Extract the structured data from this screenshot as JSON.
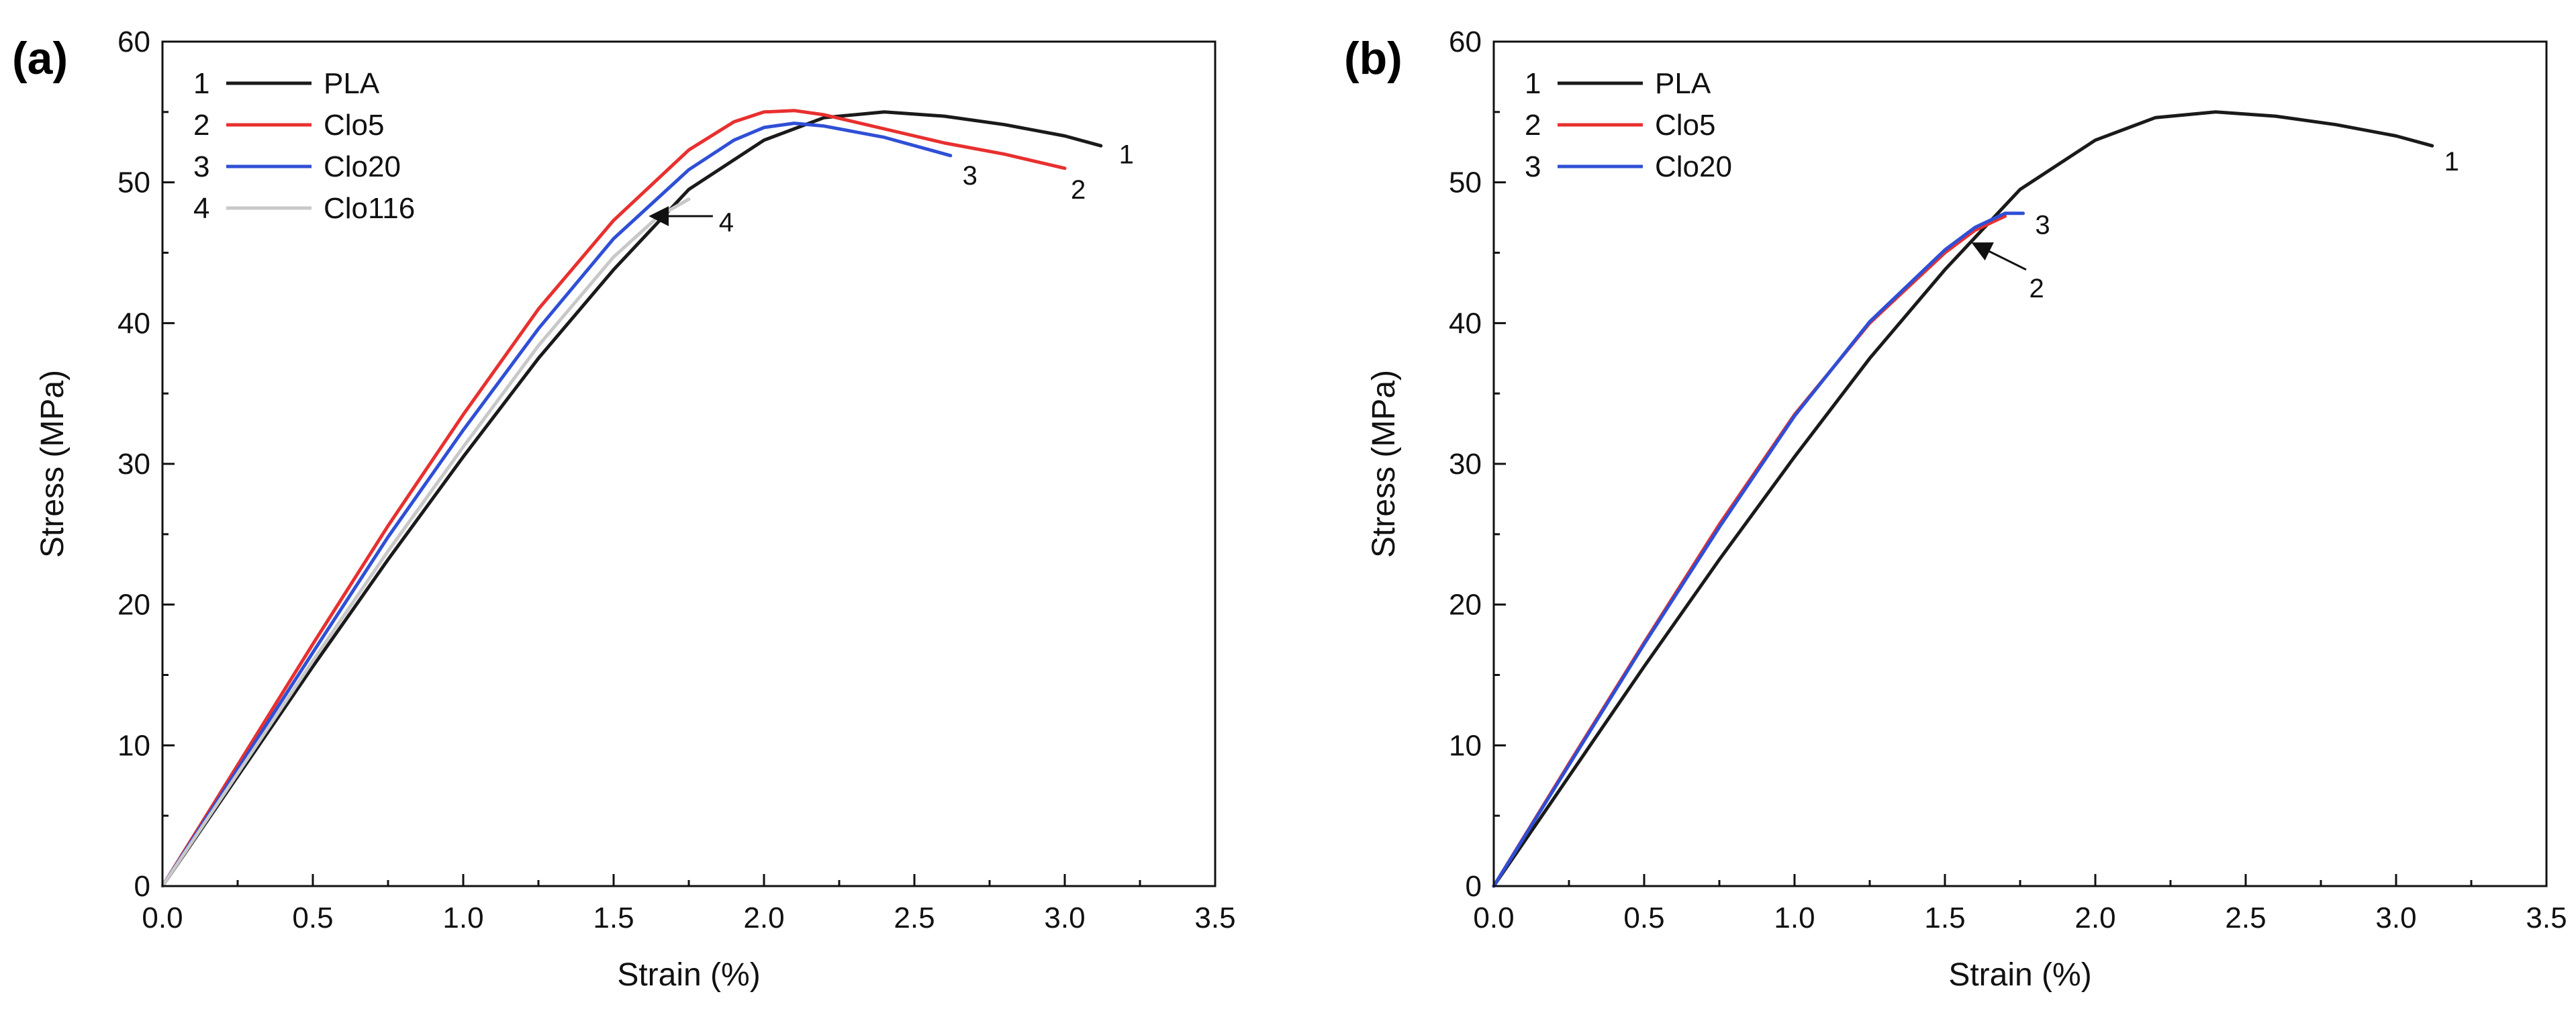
{
  "colors": {
    "PLA": "#1a1a1a",
    "Clo5": "#e8302f",
    "Clo20": "#2f4fd6",
    "Clo116": "#c8c8c8",
    "axis": "#111111"
  },
  "chart_data": [
    {
      "type": "line",
      "panel_label": "(a)",
      "xlabel": "Strain (%)",
      "ylabel": "Stress (MPa)",
      "xlim": [
        0,
        3.5
      ],
      "ylim": [
        0,
        60
      ],
      "xticks": [
        0.0,
        0.5,
        1.0,
        1.5,
        2.0,
        2.5,
        3.0,
        3.5
      ],
      "xtick_labels": [
        "0.0",
        "0.5",
        "1.0",
        "1.5",
        "2.0",
        "2.5",
        "3.0",
        "3.5"
      ],
      "yticks": [
        0,
        10,
        20,
        30,
        40,
        50,
        60
      ],
      "ytick_labels": [
        "0",
        "10",
        "20",
        "30",
        "40",
        "50",
        "60"
      ],
      "legend_position": "top-left",
      "series": [
        {
          "id": "1",
          "name": "PLA",
          "color_key": "PLA",
          "x": [
            0,
            0.25,
            0.5,
            0.75,
            1.0,
            1.25,
            1.5,
            1.75,
            2.0,
            2.2,
            2.4,
            2.6,
            2.8,
            3.0,
            3.12
          ],
          "y": [
            0,
            7.8,
            15.6,
            23.2,
            30.5,
            37.5,
            43.8,
            49.5,
            53.0,
            54.6,
            55.0,
            54.7,
            54.1,
            53.3,
            52.6
          ]
        },
        {
          "id": "2",
          "name": "Clo5",
          "color_key": "Clo5",
          "x": [
            0,
            0.25,
            0.5,
            0.75,
            1.0,
            1.25,
            1.5,
            1.75,
            1.9,
            2.0,
            2.1,
            2.2,
            2.4,
            2.6,
            2.8,
            3.0
          ],
          "y": [
            0,
            8.6,
            17.2,
            25.6,
            33.5,
            41.0,
            47.3,
            52.3,
            54.3,
            55.0,
            55.1,
            54.8,
            53.8,
            52.8,
            52.0,
            51.0
          ]
        },
        {
          "id": "3",
          "name": "Clo20",
          "color_key": "Clo20",
          "x": [
            0,
            0.25,
            0.5,
            0.75,
            1.0,
            1.25,
            1.5,
            1.75,
            1.9,
            2.0,
            2.1,
            2.2,
            2.4,
            2.62
          ],
          "y": [
            0,
            8.3,
            16.6,
            24.8,
            32.4,
            39.6,
            46.0,
            50.9,
            53.0,
            53.9,
            54.2,
            54.0,
            53.2,
            51.9
          ]
        },
        {
          "id": "4",
          "name": "Clo116",
          "color_key": "Clo116",
          "x": [
            0,
            0.25,
            0.5,
            0.75,
            1.0,
            1.25,
            1.5,
            1.65,
            1.75
          ],
          "y": [
            0,
            8.0,
            16.0,
            23.8,
            31.2,
            38.4,
            44.7,
            47.6,
            48.8
          ]
        }
      ],
      "annotations": [
        {
          "text": "1",
          "x": 3.18,
          "y": 52.0
        },
        {
          "text": "2",
          "x": 3.02,
          "y": 49.5
        },
        {
          "text": "3",
          "x": 2.66,
          "y": 50.5
        },
        {
          "text": "4",
          "x": 1.85,
          "y": 47.2,
          "arrow_from": [
            1.83,
            47.6
          ],
          "arrow_to": [
            1.63,
            47.6
          ]
        }
      ]
    },
    {
      "type": "line",
      "panel_label": "(b)",
      "xlabel": "Strain (%)",
      "ylabel": "Stress (MPa)",
      "xlim": [
        0,
        3.5
      ],
      "ylim": [
        0,
        60
      ],
      "xticks": [
        0.0,
        0.5,
        1.0,
        1.5,
        2.0,
        2.5,
        3.0,
        3.5
      ],
      "xtick_labels": [
        "0.0",
        "0.5",
        "1.0",
        "1.5",
        "2.0",
        "2.5",
        "3.0",
        "3.5"
      ],
      "yticks": [
        0,
        10,
        20,
        30,
        40,
        50,
        60
      ],
      "ytick_labels": [
        "0",
        "10",
        "20",
        "30",
        "40",
        "50",
        "60"
      ],
      "legend_position": "top-left",
      "series": [
        {
          "id": "1",
          "name": "PLA",
          "color_key": "PLA",
          "x": [
            0,
            0.25,
            0.5,
            0.75,
            1.0,
            1.25,
            1.5,
            1.75,
            2.0,
            2.2,
            2.4,
            2.6,
            2.8,
            3.0,
            3.12
          ],
          "y": [
            0,
            7.8,
            15.6,
            23.2,
            30.5,
            37.5,
            43.8,
            49.5,
            53.0,
            54.6,
            55.0,
            54.7,
            54.1,
            53.3,
            52.6
          ]
        },
        {
          "id": "2",
          "name": "Clo5",
          "color_key": "Clo5",
          "x": [
            0,
            0.25,
            0.5,
            0.75,
            1.0,
            1.25,
            1.5,
            1.6,
            1.7
          ],
          "y": [
            0,
            8.7,
            17.3,
            25.7,
            33.5,
            40.0,
            45.0,
            46.6,
            47.6
          ]
        },
        {
          "id": "3",
          "name": "Clo20",
          "color_key": "Clo20",
          "x": [
            0,
            0.25,
            0.5,
            0.75,
            1.0,
            1.25,
            1.5,
            1.6,
            1.7,
            1.76
          ],
          "y": [
            0,
            8.6,
            17.2,
            25.5,
            33.4,
            40.1,
            45.2,
            46.8,
            47.8,
            47.8
          ]
        }
      ],
      "annotations": [
        {
          "text": "1",
          "x": 3.16,
          "y": 51.5
        },
        {
          "text": "3",
          "x": 1.8,
          "y": 47.0
        },
        {
          "text": "2",
          "x": 1.78,
          "y": 42.5,
          "arrow_from": [
            1.77,
            43.8
          ],
          "arrow_to": [
            1.6,
            45.6
          ]
        }
      ]
    }
  ]
}
